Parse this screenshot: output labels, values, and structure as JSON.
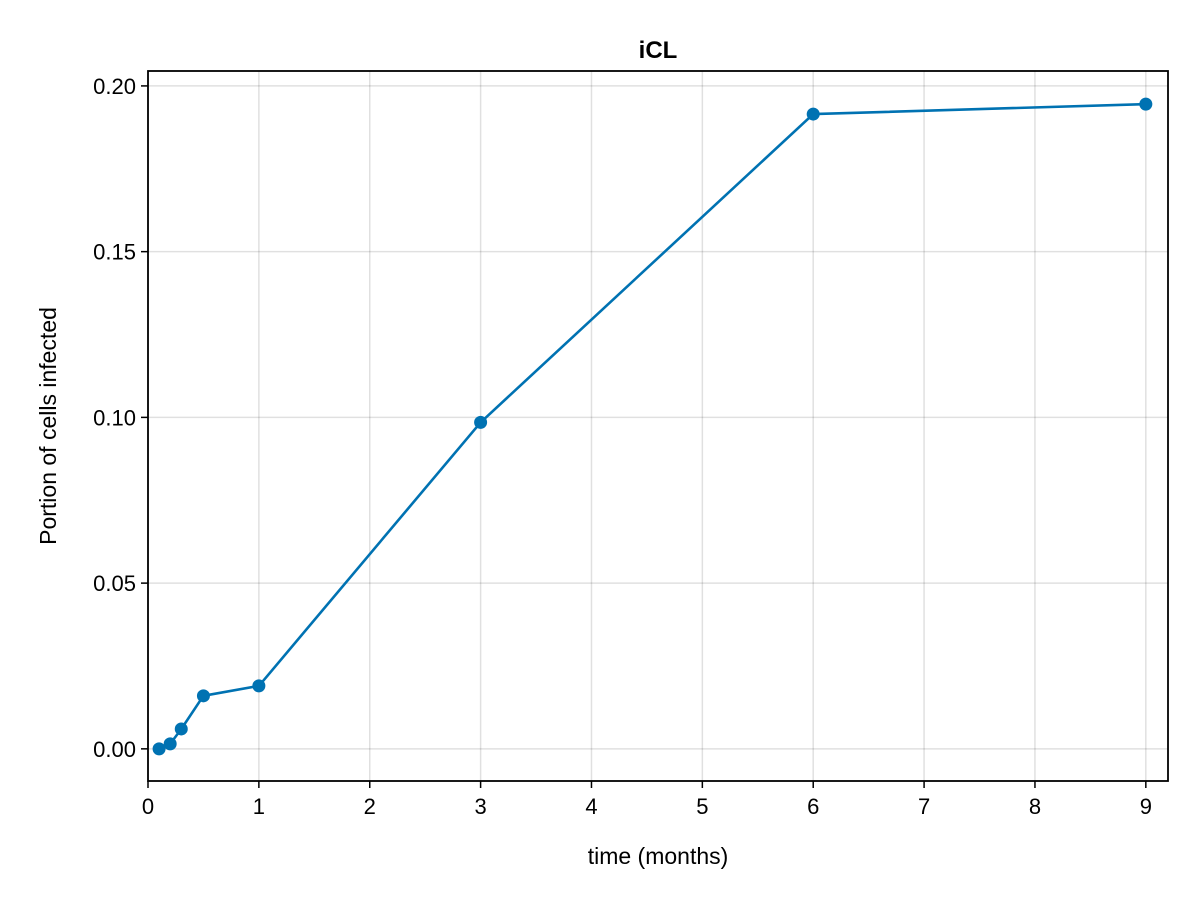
{
  "chart_data": {
    "type": "line",
    "title": "iCL",
    "xlabel": "time (months)",
    "ylabel": "Portion of cells infected",
    "xlim": [
      0,
      9.2
    ],
    "ylim": [
      -0.0097,
      0.2045
    ],
    "xticks": [
      0,
      1,
      2,
      3,
      4,
      5,
      6,
      7,
      8,
      9
    ],
    "xtick_labels": [
      "0",
      "1",
      "2",
      "3",
      "4",
      "5",
      "6",
      "7",
      "8",
      "9"
    ],
    "yticks": [
      0.0,
      0.05,
      0.1,
      0.15,
      0.2
    ],
    "ytick_labels": [
      "0.00",
      "0.05",
      "0.10",
      "0.15",
      "0.20"
    ],
    "grid": true,
    "color": "#0072b2",
    "series": [
      {
        "x": [
          0.1,
          0.2,
          0.3,
          0.5,
          1,
          3,
          6,
          9
        ],
        "y": [
          0.0,
          0.0015,
          0.006,
          0.016,
          0.019,
          0.0985,
          0.1915,
          0.1945
        ]
      }
    ]
  }
}
